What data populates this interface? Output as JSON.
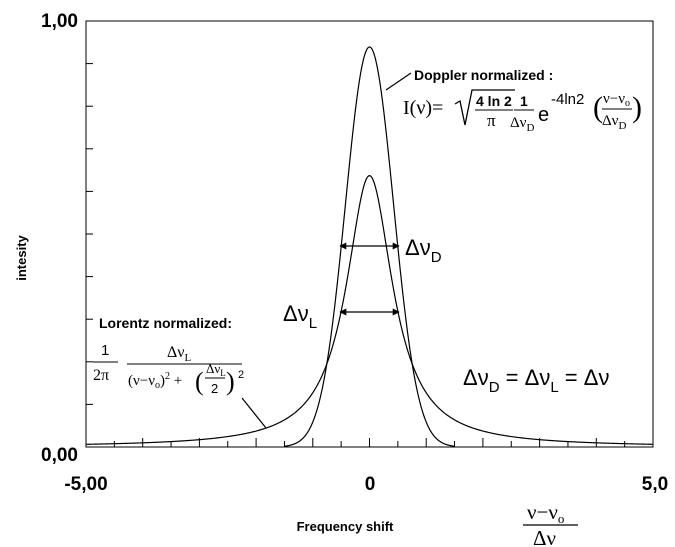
{
  "chart_data": {
    "type": "line",
    "title": "",
    "xlabel": "Frequency shift",
    "xlabel_unit": "ν−ν₀ / Δν",
    "ylabel": "intesity",
    "xlim": [
      -5.0,
      5.0
    ],
    "ylim": [
      0.0,
      1.0
    ],
    "x_tick_labels": [
      "-5,00",
      "0",
      "5,0"
    ],
    "y_tick_labels": [
      "0,00",
      "1,00"
    ],
    "grid": false,
    "series": [
      {
        "name": "Doppler",
        "peak": 0.939,
        "x": [
          -1.5,
          -1.25,
          -1.0,
          -0.75,
          -0.5,
          -0.25,
          0.0,
          0.25,
          0.5,
          0.75,
          1.0,
          1.25,
          1.5
        ],
        "y": [
          0.0,
          0.01,
          0.06,
          0.19,
          0.47,
          0.78,
          0.94,
          0.78,
          0.47,
          0.19,
          0.06,
          0.01,
          0.0
        ]
      },
      {
        "name": "Lorentz",
        "peak": 0.637,
        "x": [
          -5.0,
          -4.0,
          -3.0,
          -2.0,
          -1.5,
          -1.0,
          -0.75,
          -0.5,
          -0.25,
          0.0,
          0.25,
          0.5,
          0.75,
          1.0,
          1.5,
          2.0,
          3.0,
          4.0,
          5.0
        ],
        "y": [
          0.01,
          0.02,
          0.03,
          0.06,
          0.09,
          0.18,
          0.26,
          0.32,
          0.51,
          0.64,
          0.51,
          0.32,
          0.26,
          0.18,
          0.09,
          0.06,
          0.03,
          0.02,
          0.01
        ]
      }
    ],
    "annotations": {
      "doppler_title": "Doppler normalized :",
      "lorentz_title": "Lorentz normalized:",
      "delta_nu_d": "ΔνD",
      "delta_nu_l": "ΔνL",
      "equality": "ΔνD = ΔνL = Δν"
    }
  }
}
